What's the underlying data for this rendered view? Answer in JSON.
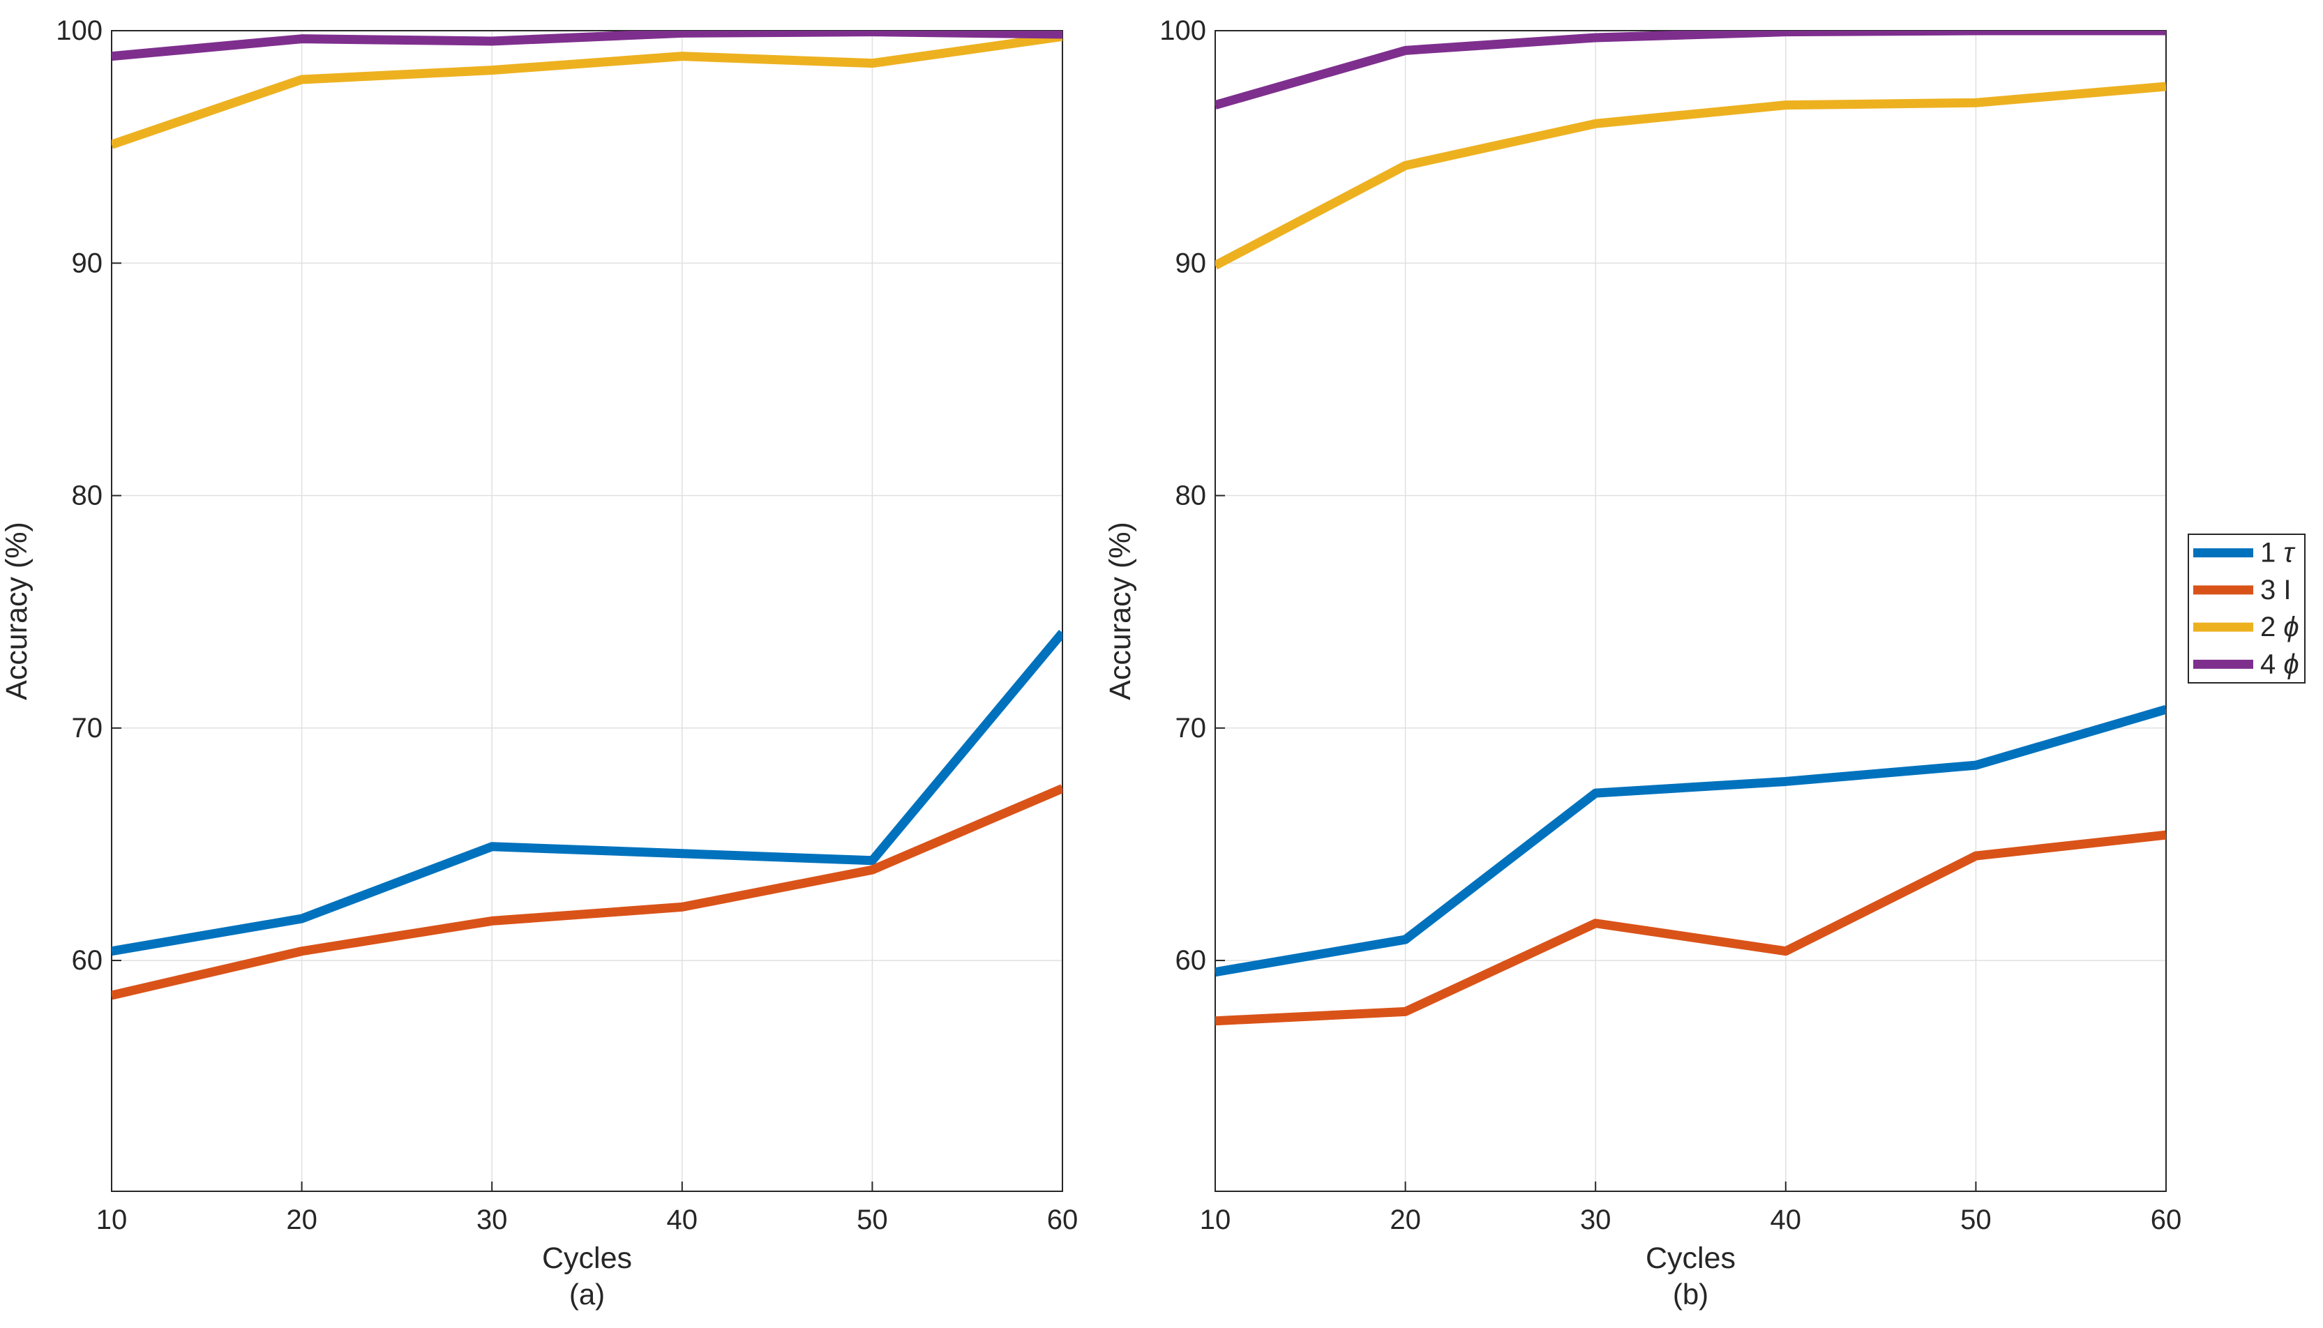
{
  "figure": {
    "background": "#ffffff",
    "axis_color": "#262626",
    "grid_color": "#e0e0e0",
    "panel_captions": [
      "(a)",
      "(b)"
    ]
  },
  "chart_data": [
    {
      "type": "line",
      "title": "",
      "caption": "(a)",
      "xlabel": "Cycles",
      "ylabel": "Accuracy (%)",
      "x": [
        10,
        20,
        30,
        40,
        50,
        60
      ],
      "xlim": [
        10,
        60
      ],
      "ylim": [
        50.1,
        100
      ],
      "xticks": [
        10,
        20,
        30,
        40,
        50,
        60
      ],
      "yticks": [
        60,
        70,
        80,
        90,
        100
      ],
      "grid": true,
      "legend_position": "right-of-figure",
      "series": [
        {
          "name": "1 τ",
          "color": "#0072BD",
          "values": [
            60.4,
            61.8,
            64.9,
            64.6,
            64.3,
            74.1
          ]
        },
        {
          "name": "3 I",
          "color": "#D95319",
          "values": [
            58.5,
            60.4,
            61.7,
            62.3,
            63.9,
            67.4
          ]
        },
        {
          "name": "2 ϕ",
          "color": "#EDB120",
          "values": [
            95.1,
            97.9,
            98.3,
            98.9,
            98.6,
            99.75
          ]
        },
        {
          "name": "4 ϕ",
          "color": "#7E2F8E",
          "values": [
            98.9,
            99.65,
            99.55,
            99.9,
            99.95,
            99.85
          ]
        }
      ]
    },
    {
      "type": "line",
      "title": "",
      "caption": "(b)",
      "xlabel": "Cycles",
      "ylabel": "Accuracy (%)",
      "x": [
        10,
        20,
        30,
        40,
        50,
        60
      ],
      "xlim": [
        10,
        60
      ],
      "ylim": [
        50.1,
        100
      ],
      "xticks": [
        10,
        20,
        30,
        40,
        50,
        60
      ],
      "yticks": [
        60,
        70,
        80,
        90,
        100
      ],
      "grid": true,
      "series": [
        {
          "name": "1 τ",
          "color": "#0072BD",
          "values": [
            59.5,
            60.9,
            67.2,
            67.7,
            68.4,
            70.8
          ]
        },
        {
          "name": "3 I",
          "color": "#D95319",
          "values": [
            57.4,
            57.8,
            61.6,
            60.4,
            64.5,
            65.4
          ]
        },
        {
          "name": "2 ϕ",
          "color": "#EDB120",
          "values": [
            89.9,
            94.2,
            96.0,
            96.8,
            96.9,
            97.6
          ]
        },
        {
          "name": "4 ϕ",
          "color": "#7E2F8E",
          "values": [
            96.8,
            99.15,
            99.7,
            99.95,
            100,
            100
          ]
        }
      ]
    }
  ],
  "legend": {
    "entries": [
      {
        "label_prefix": "1 ",
        "symbol": "τ",
        "symbol_italic": true,
        "color": "#0072BD"
      },
      {
        "label_prefix": "3 ",
        "symbol": "I",
        "symbol_italic": false,
        "color": "#D95319"
      },
      {
        "label_prefix": "2 ",
        "symbol": "ϕ",
        "symbol_italic": true,
        "color": "#EDB120"
      },
      {
        "label_prefix": "4 ",
        "symbol": "ϕ",
        "symbol_italic": true,
        "color": "#7E2F8E"
      }
    ]
  }
}
